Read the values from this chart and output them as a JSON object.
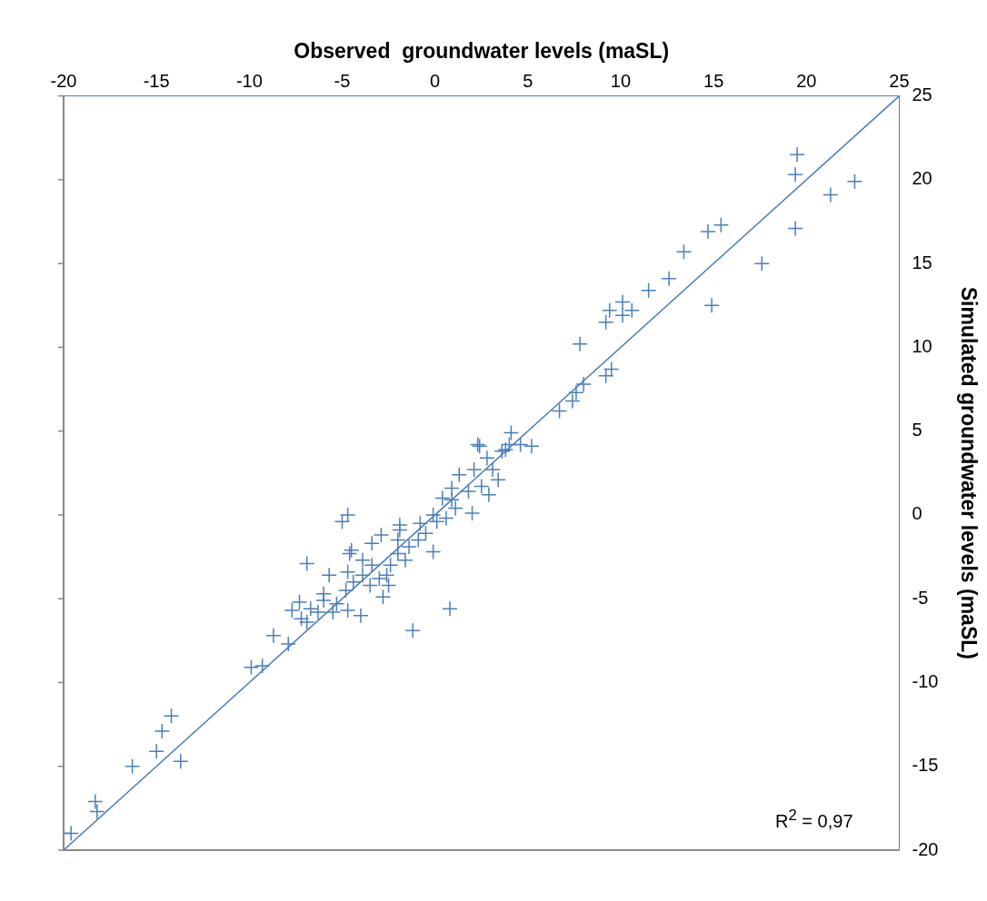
{
  "chart_data": {
    "type": "scatter",
    "xlabel": "Observed  groundwater levels (maSL)",
    "ylabel": "Simulated groundwater levels (maSL)",
    "xlim": [
      -20,
      25
    ],
    "xticks": [
      -20,
      -15,
      -10,
      -5,
      0,
      5,
      10,
      15,
      20,
      25
    ],
    "ylim": [
      -20,
      25
    ],
    "yticks": [
      -20,
      -15,
      -10,
      -5,
      0,
      5,
      10,
      15,
      20,
      25
    ],
    "grid": false,
    "legend": false,
    "marker": "cross",
    "annotations": [
      "R$^{2}$ = 0,97"
    ],
    "series": [
      {
        "color": "#4a7ebb",
        "x": [
          19.5,
          19.4,
          21.3,
          22.6,
          19.4,
          17.6,
          14.7,
          15.4,
          13.4,
          12.6,
          11.5,
          14.9,
          10.1,
          10.6,
          9.4,
          9.2,
          10.1,
          7.8,
          9.5,
          9.2,
          8.0,
          7.6,
          7.4,
          6.7,
          4.1,
          5.2,
          4.6,
          3.8,
          2.3,
          4.0,
          2.4,
          2.8,
          3.6,
          3.1,
          3.4,
          2.9,
          2.0,
          2.5,
          2.1,
          1.8,
          1.3,
          0.9,
          0.9,
          1.1,
          0.4,
          -0.1,
          0.1,
          0.6,
          -0.8,
          -0.5,
          -0.9,
          -1.4,
          -1.9,
          -1.9,
          -2.0,
          -1.6,
          -2.0,
          -2.4,
          -2.6,
          -2.5,
          -2.8,
          -0.1,
          0.8,
          -1.2,
          -2.9,
          -3.4,
          -3.9,
          -3.4,
          -3.0,
          -3.5,
          -3.9,
          -4.4,
          -4.6,
          -4.5,
          -4.7,
          -5.0,
          -4.7,
          -4.8,
          -5.7,
          -6.0,
          -6.0,
          -5.3,
          -4.7,
          -4.0,
          -5.5,
          -6.9,
          -7.3,
          -7.7,
          -6.7,
          -6.3,
          -7.2,
          -6.9,
          -8.7,
          -7.9,
          -14.2,
          -14.7,
          -15.0,
          -13.7,
          -16.3,
          -18.3,
          -18.2,
          -20.0,
          -19.6,
          -9.9,
          -9.3
        ],
        "values": [
          21.5,
          20.3,
          19.1,
          19.9,
          17.1,
          15.0,
          16.9,
          17.3,
          15.7,
          14.1,
          13.4,
          12.5,
          12.7,
          12.2,
          12.2,
          11.5,
          11.9,
          10.2,
          8.7,
          8.3,
          7.8,
          7.3,
          6.8,
          6.2,
          4.9,
          4.1,
          4.2,
          3.9,
          4.2,
          4.2,
          4.1,
          3.4,
          3.8,
          2.7,
          2.1,
          1.2,
          0.1,
          1.7,
          2.7,
          1.4,
          2.4,
          1.6,
          0.9,
          0.4,
          1.0,
          0.0,
          -0.4,
          -0.2,
          -0.5,
          -1.1,
          -1.5,
          -1.9,
          -0.6,
          -0.9,
          -1.5,
          -2.7,
          -2.3,
          -3.0,
          -3.6,
          -4.2,
          -4.9,
          -2.2,
          -5.6,
          -6.9,
          -1.2,
          -1.7,
          -2.7,
          -3.0,
          -3.8,
          -4.2,
          -3.6,
          -4.0,
          -2.3,
          -2.1,
          0.0,
          -0.4,
          -3.4,
          -4.5,
          -3.6,
          -4.7,
          -5.1,
          -5.3,
          -5.7,
          -6.0,
          -5.8,
          -2.9,
          -5.2,
          -5.7,
          -5.6,
          -5.8,
          -6.2,
          -6.4,
          -7.2,
          -7.7,
          -12.0,
          -12.9,
          -14.1,
          -14.7,
          -15.0,
          -17.1,
          -17.7,
          -19.0,
          -19.0,
          -9.1,
          -9.0
        ]
      },
      {
        "type": "line",
        "color": "#4a7ebb",
        "marker": "none",
        "line_style": "solid",
        "x": [
          -20,
          25
        ],
        "values": [
          -20,
          25
        ]
      }
    ]
  }
}
